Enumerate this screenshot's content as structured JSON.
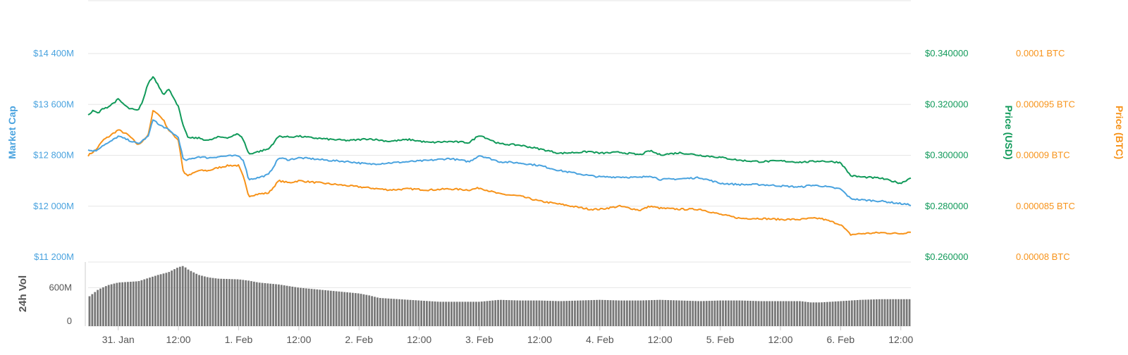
{
  "chart_data": {
    "type": "line",
    "grid": true,
    "x_ticks": [
      "31. Jan",
      "12:00",
      "1. Feb",
      "12:00",
      "2. Feb",
      "12:00",
      "3. Feb",
      "12:00",
      "4. Feb",
      "12:00",
      "5. Feb",
      "12:00",
      "6. Feb",
      "12:00"
    ],
    "x_tick_hours": [
      12,
      24,
      36,
      48,
      60,
      72,
      84,
      96,
      108,
      120,
      132,
      144,
      156,
      168
    ],
    "x_range_hours": [
      6,
      170
    ],
    "axes": {
      "market_cap": {
        "title": "Market Cap",
        "color": "#4aa3df",
        "ticks": [
          "$14 400M",
          "$13 600M",
          "$12 800M",
          "$12 000M",
          "$11 200M"
        ],
        "tick_values": [
          14400,
          13600,
          12800,
          12000,
          11200
        ],
        "range": [
          11200,
          14400
        ]
      },
      "price_usd": {
        "title": "Price (USD)",
        "color": "#119a5a",
        "ticks": [
          "$0.340000",
          "$0.320000",
          "$0.300000",
          "$0.280000",
          "$0.260000"
        ],
        "tick_values": [
          0.34,
          0.32,
          0.3,
          0.28,
          0.26
        ],
        "range": [
          0.26,
          0.34
        ]
      },
      "price_btc": {
        "title": "Price (BTC)",
        "color": "#f7931a",
        "ticks": [
          "0.0001 BTC",
          "0.000095 BTC",
          "0.00009 BTC",
          "0.000085 BTC",
          "0.00008 BTC"
        ],
        "tick_values": [
          0.0001,
          9.5e-05,
          9e-05,
          8.5e-05,
          8e-05
        ],
        "range": [
          8e-05,
          0.0001
        ]
      },
      "volume": {
        "title": "24h Vol",
        "color": "#555555",
        "ticks": [
          "600M",
          "0"
        ],
        "tick_values": [
          600,
          0
        ],
        "range": [
          0,
          1000
        ]
      }
    },
    "series": [
      {
        "name": "Market Cap",
        "color": "#4aa3df",
        "axis": "market_cap",
        "x": [
          6,
          7.5,
          9,
          10,
          12,
          14,
          16,
          18,
          19,
          20,
          21,
          22,
          24,
          25,
          26,
          28,
          30,
          32,
          34,
          36,
          37,
          38,
          40,
          42,
          44,
          46,
          48,
          50,
          54,
          58,
          62,
          66,
          70,
          74,
          78,
          82,
          84,
          88,
          92,
          96,
          100,
          106,
          108,
          112,
          116,
          118,
          120,
          124,
          128,
          132,
          136,
          140,
          144,
          148,
          150,
          152,
          156,
          158,
          160,
          164,
          168,
          170
        ],
        "y": [
          12880,
          12870,
          12960,
          12990,
          13100,
          13040,
          12980,
          13100,
          13380,
          13280,
          13250,
          13200,
          13080,
          12720,
          12730,
          12780,
          12760,
          12780,
          12790,
          12790,
          12720,
          12420,
          12450,
          12500,
          12760,
          12730,
          12760,
          12750,
          12720,
          12700,
          12660,
          12680,
          12700,
          12720,
          12750,
          12700,
          12800,
          12700,
          12680,
          12640,
          12560,
          12480,
          12460,
          12460,
          12450,
          12480,
          12420,
          12430,
          12450,
          12360,
          12340,
          12340,
          12320,
          12300,
          12330,
          12320,
          12270,
          12120,
          12100,
          12080,
          12040,
          12020
        ]
      },
      {
        "name": "Price (USD)",
        "color": "#119a5a",
        "axis": "price_usd",
        "x": [
          6,
          7,
          8,
          9,
          10,
          12,
          14,
          16,
          17,
          18,
          19,
          20,
          21,
          22,
          23,
          24,
          25,
          26,
          28,
          30,
          32,
          34,
          36,
          37,
          38,
          40,
          42,
          44,
          46,
          48,
          50,
          54,
          58,
          62,
          66,
          70,
          74,
          78,
          82,
          84,
          88,
          92,
          96,
          100,
          104,
          106,
          108,
          112,
          116,
          118,
          120,
          124,
          128,
          132,
          136,
          140,
          144,
          148,
          150,
          152,
          156,
          158,
          160,
          164,
          168,
          170
        ],
        "y": [
          0.3157,
          0.3175,
          0.3165,
          0.3185,
          0.319,
          0.322,
          0.3185,
          0.3175,
          0.322,
          0.3285,
          0.331,
          0.3275,
          0.324,
          0.326,
          0.323,
          0.319,
          0.311,
          0.3068,
          0.3068,
          0.3058,
          0.3072,
          0.307,
          0.3085,
          0.306,
          0.3005,
          0.3015,
          0.3025,
          0.3075,
          0.3072,
          0.3075,
          0.307,
          0.3063,
          0.3058,
          0.3065,
          0.3055,
          0.3062,
          0.305,
          0.3054,
          0.305,
          0.308,
          0.3045,
          0.304,
          0.3025,
          0.3008,
          0.3012,
          0.3015,
          0.3008,
          0.3012,
          0.3002,
          0.3018,
          0.3002,
          0.301,
          0.3,
          0.2992,
          0.298,
          0.2975,
          0.2978,
          0.2973,
          0.2975,
          0.2978,
          0.2972,
          0.292,
          0.2915,
          0.291,
          0.289,
          0.2912
        ]
      },
      {
        "name": "Price (BTC)",
        "color": "#f7931a",
        "axis": "price_btc",
        "x": [
          6,
          7.5,
          9,
          10,
          12,
          14,
          16,
          18,
          19,
          20,
          21,
          22,
          24,
          25,
          26,
          28,
          30,
          32,
          34,
          36,
          37,
          38,
          40,
          42,
          44,
          46,
          48,
          50,
          54,
          58,
          62,
          66,
          70,
          74,
          78,
          82,
          84,
          88,
          92,
          96,
          100,
          106,
          108,
          112,
          116,
          118,
          120,
          124,
          128,
          132,
          136,
          140,
          144,
          148,
          150,
          152,
          156,
          158,
          160,
          164,
          168,
          170
        ],
        "y": [
          9e-05,
          9.05e-05,
          9.15e-05,
          9.18e-05,
          9.25e-05,
          9.2e-05,
          9.1e-05,
          9.2e-05,
          9.45e-05,
          9.4e-05,
          9.35e-05,
          9.25e-05,
          9.15e-05,
          8.83e-05,
          8.8e-05,
          8.85e-05,
          8.85e-05,
          8.88e-05,
          8.9e-05,
          8.9e-05,
          8.78e-05,
          8.6e-05,
          8.62e-05,
          8.63e-05,
          8.75e-05,
          8.73e-05,
          8.75e-05,
          8.74e-05,
          8.72e-05,
          8.7e-05,
          8.68e-05,
          8.66e-05,
          8.67e-05,
          8.66e-05,
          8.67e-05,
          8.66e-05,
          8.68e-05,
          8.62e-05,
          8.6e-05,
          8.55e-05,
          8.52e-05,
          8.47e-05,
          8.47e-05,
          8.5e-05,
          8.46e-05,
          8.5e-05,
          8.48e-05,
          8.47e-05,
          8.47e-05,
          8.42e-05,
          8.38e-05,
          8.38e-05,
          8.37e-05,
          8.37e-05,
          8.38e-05,
          8.38e-05,
          8.32e-05,
          8.22e-05,
          8.23e-05,
          8.24e-05,
          8.23e-05,
          8.25e-05
        ]
      },
      {
        "name": "24h Vol",
        "color": "#777777",
        "axis": "volume",
        "type": "bar",
        "x": [
          6,
          8,
          10,
          12,
          14,
          16,
          18,
          20,
          22,
          24,
          25,
          26,
          28,
          30,
          32,
          36,
          38,
          40,
          44,
          48,
          52,
          56,
          60,
          62,
          64,
          68,
          72,
          76,
          80,
          84,
          88,
          92,
          96,
          100,
          104,
          108,
          112,
          116,
          120,
          124,
          128,
          132,
          136,
          140,
          144,
          148,
          150,
          152,
          156,
          160,
          164,
          168,
          170
        ],
        "y": [
          450,
          570,
          640,
          680,
          690,
          700,
          750,
          800,
          840,
          920,
          940,
          880,
          800,
          760,
          740,
          730,
          710,
          680,
          650,
          600,
          570,
          540,
          510,
          480,
          440,
          420,
          400,
          380,
          380,
          380,
          410,
          400,
          400,
          390,
          400,
          410,
          400,
          400,
          410,
          400,
          390,
          400,
          400,
          390,
          390,
          390,
          370,
          370,
          390,
          410,
          420,
          420,
          420
        ]
      }
    ]
  }
}
